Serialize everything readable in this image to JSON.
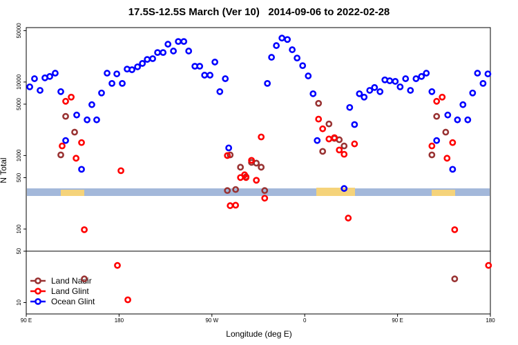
{
  "chart_data": {
    "type": "scatter",
    "title": "17.5S-12.5S March (Ver 10)   2014-09-06 to 2022-02-28",
    "x_label": "Longitude (deg E)",
    "y_label": "N Total",
    "xlim": [
      90,
      540
    ],
    "ylim": [
      7,
      55000
    ],
    "log_y": true,
    "reference_line": 50,
    "xticks": [
      {
        "value": 90,
        "label": "90 E"
      },
      180,
      {
        "value": 270,
        "label": "90 W"
      },
      {
        "value": 360,
        "label": "0"
      },
      {
        "value": 450,
        "label": "90 E"
      },
      {
        "value": 540,
        "label": "180"
      }
    ],
    "yticks": [
      10,
      50,
      100,
      500,
      1000,
      5000,
      10000,
      50000
    ],
    "legend_position": "lower left",
    "series": [
      {
        "name": "Land Nadir",
        "color": "#993333",
        "x": [
          123.5,
          128.2,
          136.9,
          146.3,
          285.0,
          287.7,
          293.0,
          297.7,
          303.1,
          308.4,
          313.1,
          317.8,
          321.2,
          373.4,
          377.4,
          383.5,
          388.8,
          393.5,
          398.2,
          483.3,
          487.9,
          496.7,
          505.4
        ],
        "values": [
          1020,
          3410,
          2080,
          21,
          334,
          1020,
          345,
          694,
          513,
          807,
          788,
          694,
          334,
          5130,
          1140,
          2690,
          1710,
          1640,
          1350,
          1020,
          3410,
          2080,
          21
        ]
      },
      {
        "name": "Land Glint",
        "color": "#ff0000",
        "x": [
          124.8,
          128.2,
          133.6,
          138.3,
          143.6,
          146.3,
          178.4,
          181.8,
          188.5,
          285.0,
          287.7,
          293.0,
          297.7,
          301.7,
          303.1,
          308.4,
          313.1,
          317.8,
          321.2,
          373.4,
          377.4,
          383.5,
          388.8,
          393.5,
          398.2,
          402.2,
          408.3,
          483.3,
          487.9,
          493.3,
          498.0,
          503.4,
          505.4,
          538.2
        ],
        "values": [
          1350,
          5470,
          6230,
          919,
          1500,
          98,
          32,
          622,
          10.9,
          1000,
          208,
          211,
          502,
          547,
          502,
          861,
          461,
          1790,
          263,
          3130,
          2310,
          1680,
          1750,
          1190,
          1040,
          141,
          1440,
          1350,
          5470,
          6230,
          919,
          1500,
          98,
          32
        ]
      },
      {
        "name": "Ocean Glint",
        "color": "#0000ff",
        "x": [
          93.4,
          98.0,
          103.4,
          108.1,
          112.8,
          118.1,
          123.5,
          128.2,
          138.9,
          143.6,
          149.0,
          153.6,
          158.3,
          163.0,
          168.4,
          173.1,
          177.8,
          183.1,
          187.8,
          192.5,
          197.9,
          202.6,
          207.3,
          212.6,
          217.3,
          222.7,
          227.4,
          232.7,
          237.4,
          242.8,
          247.5,
          253.5,
          258.2,
          262.9,
          268.2,
          272.9,
          277.7,
          283.0,
          286.3,
          323.8,
          327.8,
          332.5,
          337.9,
          343.2,
          347.9,
          352.6,
          358.0,
          363.4,
          368.1,
          372.1,
          398.2,
          403.6,
          408.3,
          413.0,
          417.6,
          423.0,
          427.7,
          433.0,
          437.7,
          442.4,
          447.8,
          452.5,
          457.8,
          462.5,
          467.9,
          473.2,
          477.9,
          483.3,
          487.9,
          498.7,
          503.4,
          508.1,
          513.4,
          518.1,
          522.8,
          527.5,
          532.9,
          537.6
        ],
        "values": [
          8600,
          11100,
          7700,
          11400,
          11900,
          13200,
          7400,
          1600,
          3560,
          650,
          3060,
          4920,
          3060,
          7100,
          13200,
          9580,
          12900,
          9580,
          15000,
          14700,
          16100,
          17900,
          20300,
          20800,
          25200,
          25200,
          32700,
          26400,
          35600,
          35600,
          26400,
          16400,
          16400,
          12400,
          12400,
          18700,
          7400,
          11100,
          1270,
          9580,
          21700,
          31300,
          39600,
          37900,
          27500,
          21200,
          16700,
          12100,
          6930,
          1600,
          356,
          4510,
          2640,
          6930,
          6230,
          7700,
          8420,
          7400,
          10700,
          10400,
          10200,
          8600,
          11100,
          7700,
          11100,
          11900,
          13200,
          7400,
          1600,
          3560,
          650,
          3060,
          4920,
          3060,
          7100,
          13200,
          9580,
          12900
        ]
      }
    ]
  }
}
